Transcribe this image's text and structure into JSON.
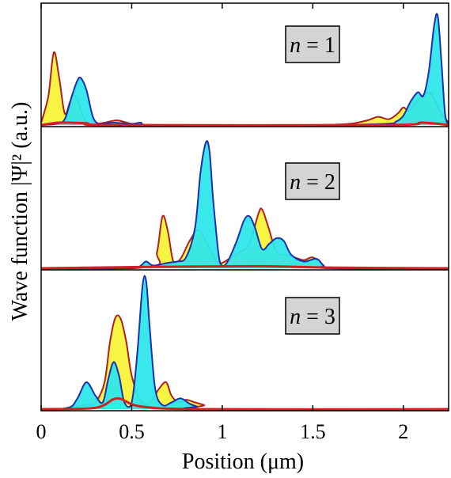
{
  "chart_data": {
    "type": "area",
    "xlabel": "Position (μm)",
    "ylabel": "Wave function |Ψ|² (a.u.)",
    "xlim": [
      0,
      2.25
    ],
    "x_ticks": [
      "0",
      "0.5",
      "1",
      "1.5",
      "2"
    ],
    "x_tick_values": [
      0,
      0.5,
      1,
      1.5,
      2
    ],
    "grid": false,
    "colors": {
      "fill_a": "#f8f33a",
      "line_a": "#b02020",
      "fill_b": "#2fe6ea",
      "line_b": "#1c2fb0",
      "base": "#d42020",
      "label_box": "#d4d4d4"
    },
    "panels": [
      {
        "label_var": "n",
        "label_eq": " = ",
        "label_num": "1",
        "ymax": 1.0,
        "series": [
          {
            "fill": "fill_a",
            "line": "line_a",
            "x": [
              0,
              0.04,
              0.07,
              0.1,
              0.13,
              0.16,
              0.18,
              0.2,
              0.22,
              0.25,
              0.3,
              0.35,
              0.42,
              0.5,
              0.6,
              1.0,
              1.5,
              1.7,
              1.8,
              1.86,
              1.92,
              1.97,
              2.0,
              2.03,
              2.06,
              2.1,
              2.14,
              2.17,
              2.2,
              2.25
            ],
            "y": [
              0.02,
              0.25,
              0.62,
              0.4,
              0.1,
              0.2,
              0.25,
              0.22,
              0.12,
              0.03,
              0.01,
              0.02,
              0.04,
              0.01,
              0.0,
              0.0,
              0.0,
              0.01,
              0.04,
              0.07,
              0.05,
              0.1,
              0.15,
              0.12,
              0.18,
              0.24,
              0.28,
              0.22,
              0.12,
              0.02
            ]
          },
          {
            "fill": "fill_b",
            "line": "line_b",
            "x": [
              0,
              0.08,
              0.13,
              0.17,
              0.2,
              0.22,
              0.25,
              0.28,
              0.3,
              0.33,
              0.4,
              0.5,
              0.55,
              0.6,
              1.0,
              1.5,
              1.9,
              1.96,
              2.0,
              2.04,
              2.08,
              2.11,
              2.14,
              2.17,
              2.19,
              2.21,
              2.23,
              2.25
            ],
            "y": [
              0.0,
              0.01,
              0.05,
              0.25,
              0.38,
              0.4,
              0.3,
              0.1,
              0.03,
              0.01,
              0.02,
              0.01,
              0.02,
              0.0,
              0.0,
              0.0,
              0.01,
              0.03,
              0.08,
              0.2,
              0.28,
              0.25,
              0.45,
              0.85,
              0.93,
              0.55,
              0.1,
              0.0
            ]
          }
        ],
        "base": {
          "x": [
            0,
            0.1,
            0.25,
            0.4,
            1.9,
            2.1,
            2.25
          ],
          "y": [
            0.0,
            0.02,
            0.015,
            0.0,
            0.0,
            0.02,
            0.0
          ]
        }
      },
      {
        "label_var": "n",
        "label_eq": " = ",
        "label_num": "2",
        "ymax": 1.0,
        "series": [
          {
            "fill": "fill_a",
            "line": "line_a",
            "x": [
              0,
              0.6,
              0.64,
              0.67,
              0.7,
              0.73,
              0.77,
              0.82,
              0.87,
              0.92,
              0.97,
              1.0,
              1.05,
              1.1,
              1.15,
              1.2,
              1.22,
              1.25,
              1.3,
              1.35,
              1.4,
              1.45,
              1.5,
              1.55,
              1.6,
              2.25
            ],
            "y": [
              0,
              0.01,
              0.12,
              0.38,
              0.27,
              0.05,
              0.07,
              0.2,
              0.28,
              0.17,
              0.05,
              0.04,
              0.08,
              0.12,
              0.18,
              0.4,
              0.43,
              0.32,
              0.12,
              0.1,
              0.08,
              0.06,
              0.08,
              0.03,
              0.0,
              0
            ]
          },
          {
            "fill": "fill_b",
            "line": "line_b",
            "x": [
              0,
              0.5,
              0.55,
              0.58,
              0.62,
              0.7,
              0.75,
              0.8,
              0.85,
              0.88,
              0.91,
              0.93,
              0.95,
              0.98,
              1.0,
              1.03,
              1.08,
              1.12,
              1.15,
              1.18,
              1.22,
              1.26,
              1.3,
              1.34,
              1.38,
              1.45,
              1.52,
              1.56,
              1.6,
              2.25
            ],
            "y": [
              0,
              0.0,
              0.02,
              0.05,
              0.02,
              0.04,
              0.05,
              0.08,
              0.3,
              0.7,
              0.92,
              0.85,
              0.5,
              0.1,
              0.02,
              0.05,
              0.2,
              0.35,
              0.38,
              0.3,
              0.14,
              0.18,
              0.22,
              0.2,
              0.1,
              0.05,
              0.07,
              0.02,
              0.0,
              0
            ]
          }
        ],
        "base": {
          "x": [
            0,
            0.6,
            1.2,
            1.6,
            2.25
          ],
          "y": [
            0,
            0.01,
            0.015,
            0.005,
            0
          ]
        }
      },
      {
        "label_var": "n",
        "label_eq": " = ",
        "label_num": "3",
        "ymax": 1.0,
        "series": [
          {
            "fill": "fill_a",
            "line": "line_a",
            "x": [
              0,
              0.1,
              0.18,
              0.25,
              0.3,
              0.35,
              0.38,
              0.41,
              0.44,
              0.47,
              0.5,
              0.55,
              0.6,
              0.65,
              0.69,
              0.72,
              0.76,
              0.8,
              0.85,
              0.9,
              0.95,
              2.25
            ],
            "y": [
              0,
              0.0,
              0.02,
              0.03,
              0.05,
              0.2,
              0.5,
              0.68,
              0.67,
              0.5,
              0.25,
              0.06,
              0.05,
              0.15,
              0.2,
              0.1,
              0.05,
              0.07,
              0.05,
              0.03,
              0.0,
              0
            ]
          },
          {
            "fill": "fill_b",
            "line": "line_b",
            "x": [
              0,
              0.15,
              0.2,
              0.25,
              0.3,
              0.34,
              0.37,
              0.4,
              0.43,
              0.46,
              0.5,
              0.53,
              0.56,
              0.58,
              0.6,
              0.63,
              0.67,
              0.72,
              0.77,
              0.82,
              0.86,
              0.9,
              2.25
            ],
            "y": [
              0,
              0.01,
              0.08,
              0.2,
              0.1,
              0.05,
              0.22,
              0.35,
              0.25,
              0.05,
              0.05,
              0.4,
              0.92,
              0.95,
              0.6,
              0.15,
              0.03,
              0.05,
              0.08,
              0.04,
              0.02,
              0.0,
              0
            ]
          }
        ],
        "base": {
          "x": [
            0,
            0.3,
            0.42,
            0.55,
            0.9,
            2.25
          ],
          "y": [
            0,
            0.01,
            0.08,
            0.02,
            0.0,
            0
          ]
        }
      }
    ]
  }
}
